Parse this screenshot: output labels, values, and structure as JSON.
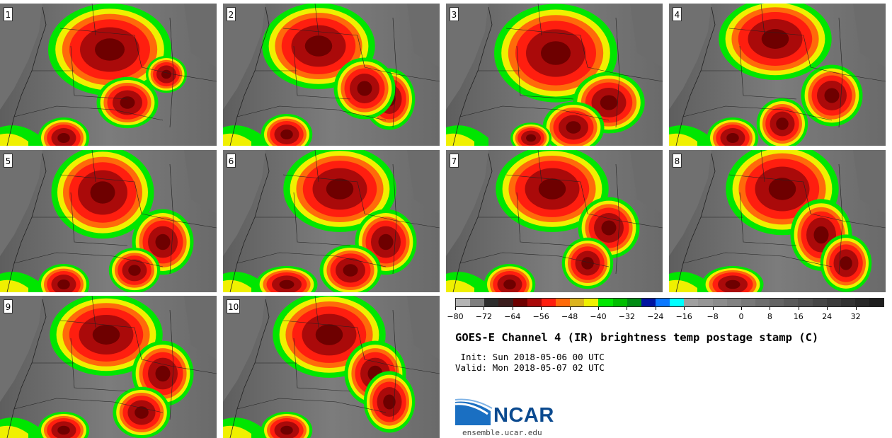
{
  "panels": [
    {
      "label": "1"
    },
    {
      "label": "2"
    },
    {
      "label": "3"
    },
    {
      "label": "4"
    },
    {
      "label": "5"
    },
    {
      "label": "6"
    },
    {
      "label": "7"
    },
    {
      "label": "8"
    },
    {
      "label": "9"
    },
    {
      "label": "10"
    }
  ],
  "colorbar": {
    "colors": [
      "#b4b4b4",
      "#7f7f7f",
      "#2e2e2e",
      "#3c1e1e",
      "#6e0000",
      "#aa0a0a",
      "#ff1e0f",
      "#ff6a0a",
      "#dcb41e",
      "#f0f000",
      "#00e600",
      "#00be00",
      "#008c14",
      "#0014a0",
      "#0a78ff",
      "#00ffff",
      "#a0a0a0",
      "#969696",
      "#8c8c8c",
      "#828282",
      "#787878",
      "#6e6e6e",
      "#646464",
      "#5a5a5a",
      "#505050",
      "#464646",
      "#3c3c3c",
      "#323232",
      "#282828",
      "#1e1e1e"
    ],
    "ticks": [
      "−80",
      "−72",
      "−64",
      "−56",
      "−48",
      "−40",
      "−32",
      "−24",
      "−16",
      "−8",
      "0",
      "8",
      "16",
      "24",
      "32"
    ]
  },
  "title": "GOES-E Channel 4 (IR) brightness temp postage stamp (C)",
  "init": " Init: Sun 2018-05-06 00 UTC",
  "valid": "Valid: Mon 2018-05-07 02 UTC",
  "logo": {
    "text": "NCAR",
    "url": "ensemble.ucar.edu"
  }
}
